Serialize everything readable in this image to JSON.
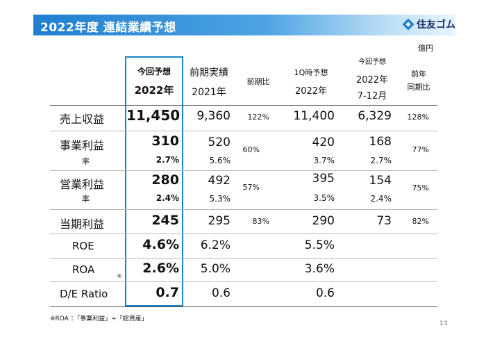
{
  "header": {
    "title": "2022年度 連結業績予想",
    "logo_text": "住友ゴム"
  },
  "unit": "億円",
  "columns": {
    "forecast": {
      "l1": "今回予想",
      "l2": "2022年"
    },
    "prev_actual": {
      "l1": "前期実績",
      "l2": "2021年"
    },
    "yoy": {
      "l1": "前期比"
    },
    "q1_forecast": {
      "l1": "1Q時予想",
      "l2": "2022年"
    },
    "h2_forecast": {
      "l1": "今回予想",
      "l2": "2022年",
      "l3": "7-12月"
    },
    "h2_yoy": {
      "l1": "前年",
      "l2": "同期比"
    }
  },
  "rows": {
    "sales": {
      "label": "売上収益",
      "forecast": "11,450",
      "prev": "9,360",
      "yoy": "122%",
      "q1": "11,400",
      "h2": "6,329",
      "h2_yoy": "128%"
    },
    "business_profit": {
      "label": "事業利益",
      "sub_label": "率",
      "forecast": "310",
      "forecast_rate": "2.7%",
      "prev": "520",
      "prev_rate": "5.6%",
      "yoy": "60%",
      "q1": "420",
      "q1_rate": "3.7%",
      "h2": "168",
      "h2_rate": "2.7%",
      "h2_yoy": "77%"
    },
    "operating_profit": {
      "label": "営業利益",
      "sub_label": "率",
      "forecast": "280",
      "forecast_rate": "2.4%",
      "prev": "492",
      "prev_rate": "5.3%",
      "yoy": "57%",
      "q1": "395",
      "q1_rate": "3.5%",
      "h2": "154",
      "h2_rate": "2.4%",
      "h2_yoy": "75%"
    },
    "net_profit": {
      "label": "当期利益",
      "forecast": "245",
      "prev": "295",
      "yoy": "83%",
      "q1": "290",
      "h2": "73",
      "h2_yoy": "82%"
    },
    "roe": {
      "label": "ROE",
      "forecast": "4.6%",
      "prev": "6.2%",
      "q1": "5.5%"
    },
    "roa": {
      "label": "ROA",
      "mark": "※",
      "forecast": "2.6%",
      "prev": "5.0%",
      "q1": "3.6%"
    },
    "de_ratio": {
      "label": "D/E Ratio",
      "forecast": "0.7",
      "prev": "0.6",
      "q1": "0.6"
    }
  },
  "footnote": "※ROA ：「事業利益」÷「総資産」",
  "page_number": "13",
  "colors": {
    "accent": "#1a86c7",
    "title_bar": "#1f7fd0",
    "logo": "#1a2a6b"
  }
}
